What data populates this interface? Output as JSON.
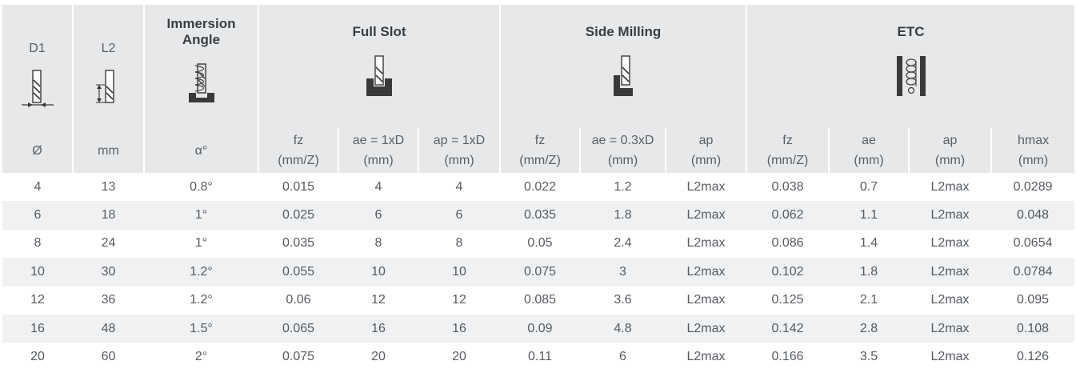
{
  "header": {
    "d1": "D1",
    "l2": "L2",
    "immersion_line1": "Immersion",
    "immersion_line2": "Angle",
    "full_slot": "Full Slot",
    "side_milling": "Side Milling",
    "etc": "ETC"
  },
  "subheader": {
    "dia": "Ø",
    "mm": "mm",
    "alpha": "α°",
    "fs_fz": "fz",
    "fs_fz_u": "(mm/Z)",
    "fs_ae": "ae = 1xD",
    "fs_ae_u": "(mm)",
    "fs_ap": "ap = 1xD",
    "fs_ap_u": "(mm)",
    "sm_fz": "fz",
    "sm_fz_u": "(mm/Z)",
    "sm_ae": "ae = 0.3xD",
    "sm_ae_u": "(mm)",
    "sm_ap": "ap",
    "sm_ap_u": "(mm)",
    "etc_fz": "fz",
    "etc_fz_u": "(mm/Z)",
    "etc_ae": "ae",
    "etc_ae_u": "(mm)",
    "etc_ap": "ap",
    "etc_ap_u": "(mm)",
    "etc_hmax": "hmax",
    "etc_hmax_u": "(mm)"
  },
  "icons": {
    "d1": "end-mill-diameter-icon",
    "l2": "end-mill-length-icon",
    "immersion": "ramping-immersion-icon",
    "full_slot": "full-slot-icon",
    "side_milling": "side-milling-icon",
    "etc": "helical-interpolation-icon"
  },
  "rows": [
    [
      "4",
      "13",
      "0.8°",
      "0.015",
      "4",
      "4",
      "0.022",
      "1.2",
      "L2max",
      "0.038",
      "0.7",
      "L2max",
      "0.0289"
    ],
    [
      "6",
      "18",
      "1°",
      "0.025",
      "6",
      "6",
      "0.035",
      "1.8",
      "L2max",
      "0.062",
      "1.1",
      "L2max",
      "0.048"
    ],
    [
      "8",
      "24",
      "1°",
      "0.035",
      "8",
      "8",
      "0.05",
      "2.4",
      "L2max",
      "0.086",
      "1.4",
      "L2max",
      "0.0654"
    ],
    [
      "10",
      "30",
      "1.2°",
      "0.055",
      "10",
      "10",
      "0.075",
      "3",
      "L2max",
      "0.102",
      "1.8",
      "L2max",
      "0.0784"
    ],
    [
      "12",
      "36",
      "1.2°",
      "0.06",
      "12",
      "12",
      "0.085",
      "3.6",
      "L2max",
      "0.125",
      "2.1",
      "L2max",
      "0.095"
    ],
    [
      "16",
      "48",
      "1.5°",
      "0.065",
      "16",
      "16",
      "0.09",
      "4.8",
      "L2max",
      "0.142",
      "2.8",
      "L2max",
      "0.108"
    ],
    [
      "20",
      "60",
      "2°",
      "0.075",
      "20",
      "20",
      "0.11",
      "6",
      "L2max",
      "0.166",
      "3.5",
      "L2max",
      "0.126"
    ]
  ],
  "colors": {
    "header_bg": "#e7e8ea",
    "alt_row_bg": "#f0f1f2",
    "icon_dark": "#3a3a3a"
  }
}
